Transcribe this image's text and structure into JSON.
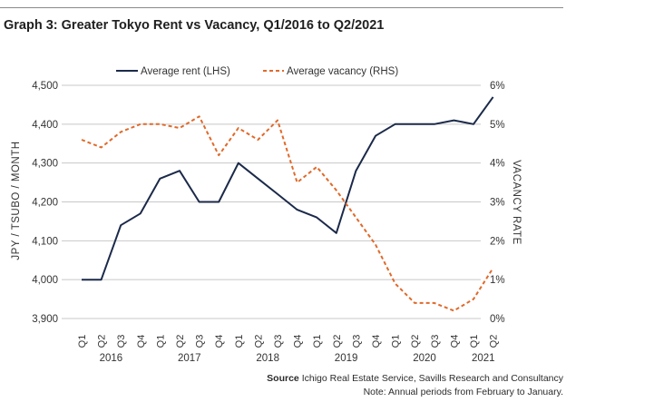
{
  "header": {
    "title": "Graph 3: Greater Tokyo Rent vs Vacancy, Q1/2016 to Q2/2021"
  },
  "footer": {
    "source_label": "Source",
    "source_text": "Ichigo Real Estate Service, Savills Research and Consultancy",
    "note": "Note: Annual periods from February to January."
  },
  "colors": {
    "rent": "#1b2a4a",
    "vacancy": "#e0692a",
    "grid": "#c8c8c8",
    "text": "#333333"
  },
  "chart_data": {
    "type": "line",
    "title": "Graph 3: Greater Tokyo Rent vs Vacancy, Q1/2016 to Q2/2021",
    "ylabel_left": "JPY / TSUBO / MONTH",
    "ylabel_right": "VACANCY RATE",
    "ylim_left": [
      3900,
      4500
    ],
    "yticks_left": [
      "4,500",
      "4,400",
      "4,300",
      "4,200",
      "4,100",
      "4,000",
      "3,900"
    ],
    "ylim_right": [
      0,
      6
    ],
    "yticks_right": [
      "6%",
      "5%",
      "4%",
      "3%",
      "2%",
      "1%",
      "0%"
    ],
    "categories": [
      "Q1",
      "Q2",
      "Q3",
      "Q4",
      "Q1",
      "Q2",
      "Q3",
      "Q4",
      "Q1",
      "Q2",
      "Q3",
      "Q4",
      "Q1",
      "Q2",
      "Q3",
      "Q4",
      "Q1",
      "Q2",
      "Q3",
      "Q4",
      "Q1",
      "Q2"
    ],
    "x_extra_points": 1,
    "years": [
      {
        "label": "2016",
        "start": 0,
        "end": 3
      },
      {
        "label": "2017",
        "start": 4,
        "end": 7
      },
      {
        "label": "2018",
        "start": 8,
        "end": 11
      },
      {
        "label": "2019",
        "start": 12,
        "end": 15
      },
      {
        "label": "2020",
        "start": 16,
        "end": 19
      },
      {
        "label": "2021",
        "start": 20,
        "end": 21
      }
    ],
    "legend_position": "top",
    "grid": true,
    "series": [
      {
        "name": "Average rent (LHS)",
        "axis": "left",
        "style": "solid",
        "values": [
          4000,
          4000,
          4140,
          4170,
          4260,
          4280,
          4200,
          4200,
          4300,
          4260,
          4220,
          4180,
          4160,
          4120,
          4280,
          4370,
          4400,
          4400,
          4400,
          4410,
          4400,
          4470
        ]
      },
      {
        "name": "Average vacancy (RHS)",
        "axis": "right",
        "style": "dashed",
        "values": [
          4.6,
          4.4,
          4.8,
          5.0,
          5.0,
          4.9,
          5.2,
          4.2,
          4.9,
          4.6,
          5.1,
          3.5,
          3.9,
          3.3,
          2.6,
          1.9,
          0.9,
          0.4,
          0.4,
          0.2,
          0.5,
          1.3
        ]
      }
    ]
  }
}
